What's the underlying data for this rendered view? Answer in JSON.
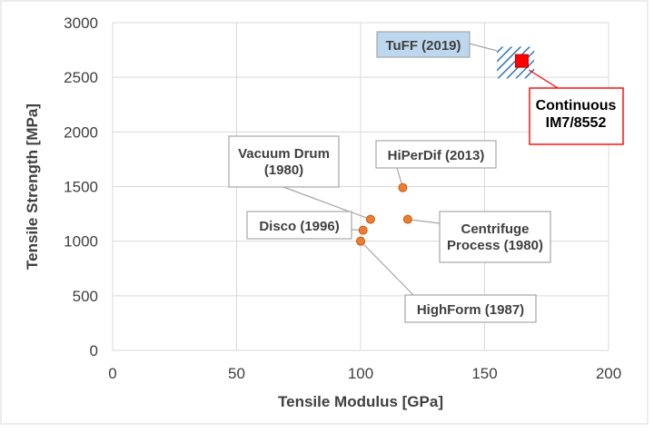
{
  "chart_data": {
    "type": "scatter",
    "xlabel": "Tensile Modulus [GPa]",
    "ylabel": "Tensile Strength [MPa]",
    "xlim": [
      0,
      200
    ],
    "ylim": [
      0,
      3000
    ],
    "xticks": [
      0,
      50,
      100,
      150,
      200
    ],
    "yticks": [
      0,
      500,
      1000,
      1500,
      2000,
      2500,
      3000
    ],
    "grid": true,
    "colors": {
      "points": "#ed7d31",
      "point_edge": "#c55a11",
      "continuous": "#ff0000",
      "continuous_border": "#c00000",
      "tuff_hatch": "#2e75b6",
      "tuff_label_bg": "#bdd7ee",
      "label_border": "#a6a6a6",
      "grid": "#d9d9d9",
      "text": "#404040"
    },
    "points": [
      {
        "label": "Vacuum Drum\n(1980)",
        "x": 104,
        "y": 1200
      },
      {
        "label": "HiPerDif (2013)",
        "x": 117,
        "y": 1490
      },
      {
        "label": "Centrifuge\nProcess (1980)",
        "x": 119,
        "y": 1200
      },
      {
        "label": "Disco (1996)",
        "x": 101,
        "y": 1100
      },
      {
        "label": "HighForm (1987)",
        "x": 100,
        "y": 1000
      }
    ],
    "tuff": {
      "label": "TuFF (2019)",
      "x_range": [
        155,
        170
      ],
      "y_range": [
        2490,
        2780
      ]
    },
    "continuous": {
      "label": "Continuous\nIM7/8552",
      "x": 165,
      "y": 2650
    }
  }
}
